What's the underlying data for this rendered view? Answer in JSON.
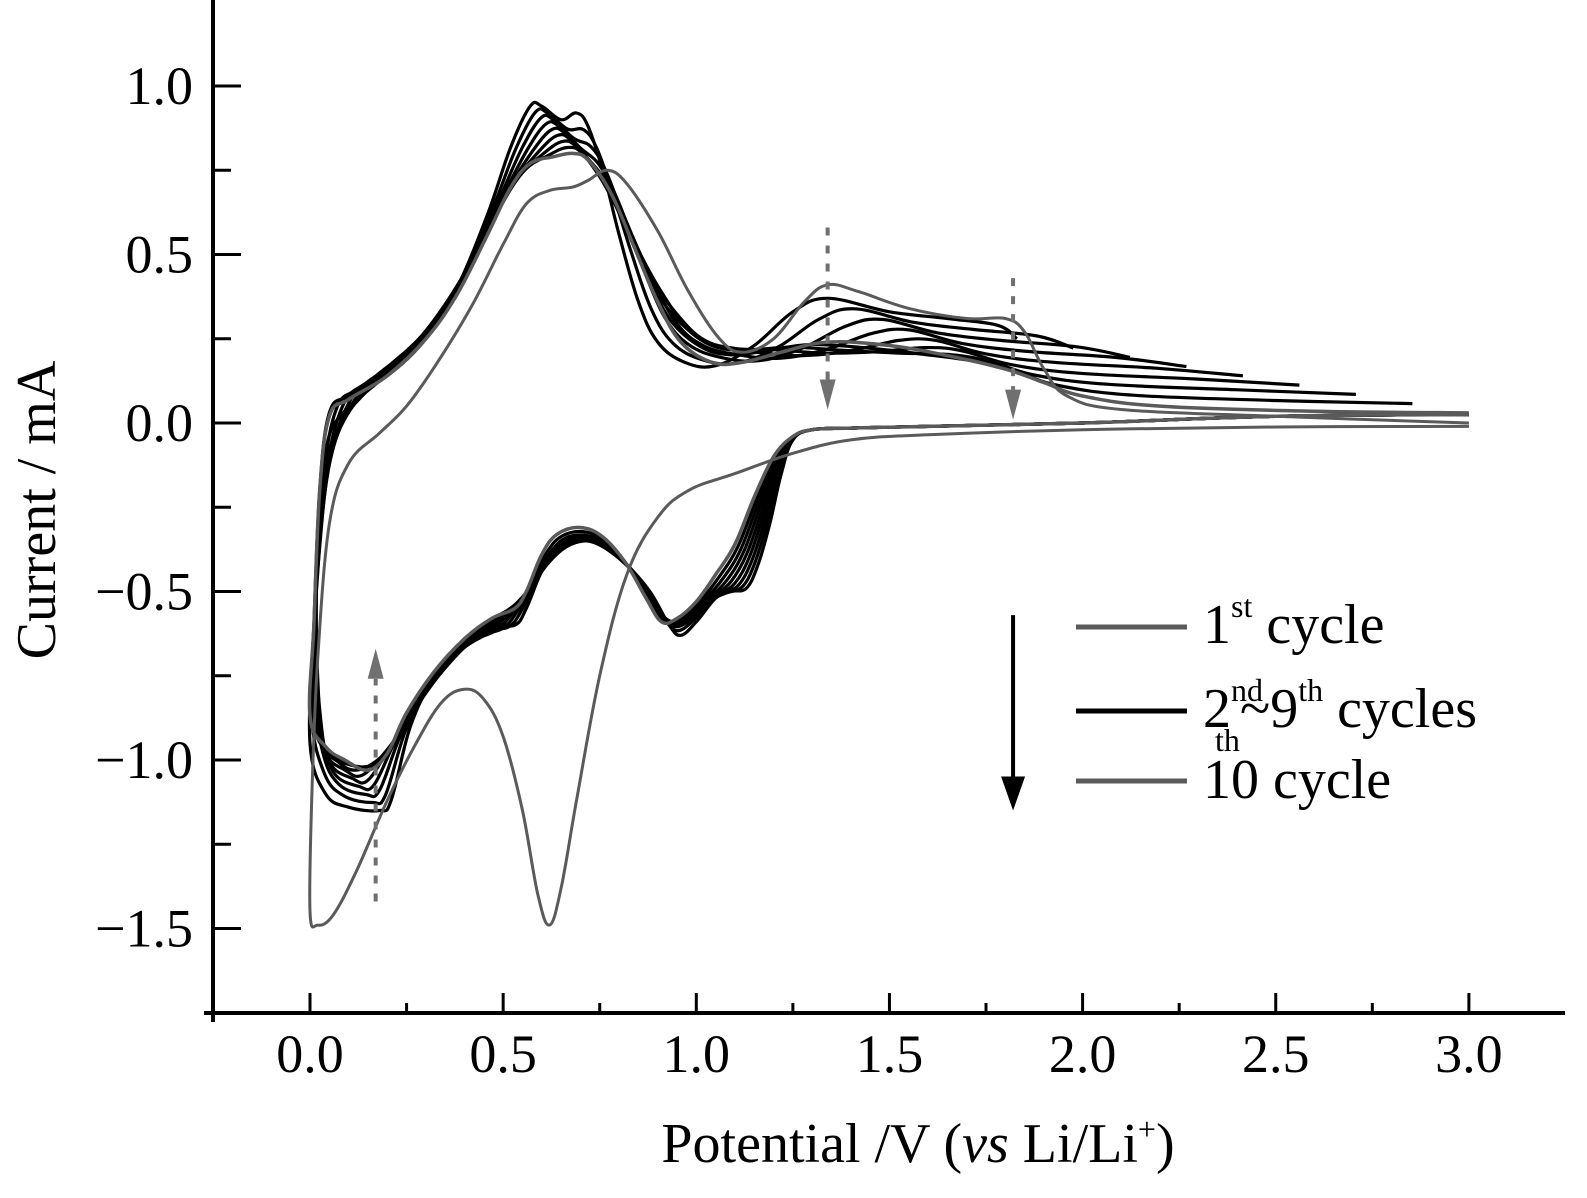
{
  "chart_data": {
    "type": "line",
    "title": "",
    "xlabel": {
      "main": "Potential /V (",
      "italic": "vs",
      "rest": " Li/Li",
      "sup": "+",
      "close": ")"
    },
    "ylabel": "Current / mA",
    "xlim": [
      -0.25,
      3.25
    ],
    "ylim": [
      -1.75,
      1.25
    ],
    "x_ticks": [
      {
        "value": 0.0,
        "label": "0.0"
      },
      {
        "value": 0.5,
        "label": "0.5"
      },
      {
        "value": 1.0,
        "label": "1.0"
      },
      {
        "value": 1.5,
        "label": "1.5"
      },
      {
        "value": 2.0,
        "label": "2.0"
      },
      {
        "value": 2.5,
        "label": "2.5"
      },
      {
        "value": 3.0,
        "label": "3.0"
      }
    ],
    "x_minor_ticks": [
      0.25,
      0.75,
      1.25,
      1.75,
      2.25,
      2.75
    ],
    "y_ticks": [
      {
        "value": 1.0,
        "label": "1.0"
      },
      {
        "value": 0.5,
        "label": "0.5"
      },
      {
        "value": 0.0,
        "label": "0.0"
      },
      {
        "value": -0.5,
        "label": "−0.5"
      },
      {
        "value": -1.0,
        "label": "−1.0"
      },
      {
        "value": -1.5,
        "label": "−1.5"
      }
    ],
    "y_minor_ticks": [
      0.75,
      0.25,
      -0.25,
      -0.75,
      -1.25
    ],
    "grid": false,
    "colors": {
      "first": "#5a5a5a",
      "middle": "#000000",
      "tenth": "#5a5a5a",
      "annotation": "#707070"
    },
    "legend": {
      "placement": "right-center",
      "entries": [
        {
          "label": "1",
          "sup": "st",
          "rest": " cycle",
          "color": "#5a5a5a"
        },
        {
          "label": "2",
          "sup": "nd",
          "sub": "th",
          "mid": "~9",
          "sup2": "th",
          "rest": " cycles",
          "color": "#000000"
        },
        {
          "label": "10",
          "rest": " cycle",
          "color": "#5a5a5a"
        }
      ]
    },
    "annotations": [
      {
        "type": "dotted-arrow",
        "direction": "up",
        "x": 0.17,
        "y_from": -1.42,
        "y_to": -0.67
      },
      {
        "type": "dotted-arrow",
        "direction": "down",
        "x": 1.34,
        "y_from": 0.58,
        "y_to": 0.04
      },
      {
        "type": "dotted-arrow",
        "direction": "down",
        "x": 1.82,
        "y_from": 0.43,
        "y_to": 0.01
      },
      {
        "type": "solid-arrow",
        "direction": "down",
        "x": 1.82,
        "y_from": -0.57,
        "y_to": -1.15,
        "note": "legend order arrow"
      }
    ],
    "series": [
      {
        "name": "1st cycle",
        "color": "#5a5a5a",
        "points": [
          [
            3.0,
            -0.01
          ],
          [
            2.5,
            -0.012
          ],
          [
            2.0,
            -0.02
          ],
          [
            1.6,
            -0.035
          ],
          [
            1.4,
            -0.05
          ],
          [
            1.25,
            -0.09
          ],
          [
            1.1,
            -0.15
          ],
          [
            0.98,
            -0.2
          ],
          [
            0.9,
            -0.28
          ],
          [
            0.82,
            -0.45
          ],
          [
            0.75,
            -0.75
          ],
          [
            0.69,
            -1.12
          ],
          [
            0.65,
            -1.38
          ],
          [
            0.62,
            -1.49
          ],
          [
            0.59,
            -1.4
          ],
          [
            0.55,
            -1.15
          ],
          [
            0.5,
            -0.93
          ],
          [
            0.45,
            -0.82
          ],
          [
            0.4,
            -0.79
          ],
          [
            0.34,
            -0.83
          ],
          [
            0.27,
            -0.96
          ],
          [
            0.2,
            -1.12
          ],
          [
            0.12,
            -1.33
          ],
          [
            0.06,
            -1.46
          ],
          [
            0.02,
            -1.49
          ],
          [
            0.0,
            -1.45
          ],
          [
            0.005,
            -1.1
          ],
          [
            0.02,
            -0.7
          ],
          [
            0.05,
            -0.3
          ],
          [
            0.1,
            -0.12
          ],
          [
            0.18,
            -0.03
          ],
          [
            0.25,
            0.05
          ],
          [
            0.33,
            0.18
          ],
          [
            0.42,
            0.35
          ],
          [
            0.5,
            0.53
          ],
          [
            0.56,
            0.65
          ],
          [
            0.62,
            0.69
          ],
          [
            0.68,
            0.7
          ],
          [
            0.72,
            0.72
          ],
          [
            0.77,
            0.75
          ],
          [
            0.82,
            0.71
          ],
          [
            0.9,
            0.57
          ],
          [
            0.98,
            0.39
          ],
          [
            1.06,
            0.25
          ],
          [
            1.12,
            0.21
          ],
          [
            1.2,
            0.25
          ],
          [
            1.28,
            0.36
          ],
          [
            1.34,
            0.41
          ],
          [
            1.42,
            0.39
          ],
          [
            1.55,
            0.34
          ],
          [
            1.7,
            0.31
          ],
          [
            1.8,
            0.31
          ],
          [
            1.85,
            0.27
          ],
          [
            1.9,
            0.16
          ],
          [
            1.96,
            0.08
          ],
          [
            2.1,
            0.04
          ],
          [
            2.5,
            0.02
          ],
          [
            3.0,
            0.0
          ]
        ]
      },
      {
        "name": "2nd~9th cycles",
        "color": "#000000",
        "count": 8,
        "points_template": "interpolated between cycle 2 and cycle 10 shapes"
      },
      {
        "name": "10th cycle",
        "color": "#5a5a5a",
        "points": [
          [
            3.0,
            0.025
          ],
          [
            2.5,
            0.02
          ],
          [
            2.0,
            0.0
          ],
          [
            1.6,
            -0.01
          ],
          [
            1.4,
            -0.015
          ],
          [
            1.3,
            -0.02
          ],
          [
            1.25,
            -0.04
          ],
          [
            1.2,
            -0.1
          ],
          [
            1.15,
            -0.22
          ],
          [
            1.1,
            -0.36
          ],
          [
            1.05,
            -0.45
          ],
          [
            1.0,
            -0.53
          ],
          [
            0.95,
            -0.58
          ],
          [
            0.91,
            -0.59
          ],
          [
            0.87,
            -0.52
          ],
          [
            0.82,
            -0.42
          ],
          [
            0.76,
            -0.34
          ],
          [
            0.7,
            -0.31
          ],
          [
            0.64,
            -0.33
          ],
          [
            0.6,
            -0.39
          ],
          [
            0.56,
            -0.5
          ],
          [
            0.53,
            -0.55
          ],
          [
            0.47,
            -0.58
          ],
          [
            0.4,
            -0.64
          ],
          [
            0.32,
            -0.74
          ],
          [
            0.25,
            -0.86
          ],
          [
            0.2,
            -0.98
          ],
          [
            0.15,
            -1.03
          ],
          [
            0.09,
            -1.0
          ],
          [
            0.04,
            -0.96
          ],
          [
            0.0,
            -0.87
          ],
          [
            0.01,
            -0.6
          ],
          [
            0.025,
            -0.2
          ],
          [
            0.05,
            0.02
          ],
          [
            0.1,
            0.07
          ],
          [
            0.2,
            0.14
          ],
          [
            0.3,
            0.25
          ],
          [
            0.38,
            0.38
          ],
          [
            0.46,
            0.56
          ],
          [
            0.52,
            0.7
          ],
          [
            0.57,
            0.77
          ],
          [
            0.63,
            0.79
          ],
          [
            0.68,
            0.8
          ],
          [
            0.72,
            0.78
          ],
          [
            0.78,
            0.68
          ],
          [
            0.84,
            0.52
          ],
          [
            0.9,
            0.36
          ],
          [
            0.96,
            0.24
          ],
          [
            1.04,
            0.18
          ],
          [
            1.12,
            0.18
          ],
          [
            1.22,
            0.21
          ],
          [
            1.34,
            0.24
          ],
          [
            1.5,
            0.23
          ],
          [
            1.65,
            0.2
          ],
          [
            1.8,
            0.16
          ],
          [
            1.9,
            0.12
          ],
          [
            2.0,
            0.08
          ],
          [
            2.2,
            0.05
          ],
          [
            2.6,
            0.035
          ],
          [
            3.0,
            0.03
          ]
        ]
      }
    ],
    "cycle2_points": [
      [
        3.0,
        0.025
      ],
      [
        2.5,
        0.02
      ],
      [
        2.0,
        0.0
      ],
      [
        1.6,
        -0.01
      ],
      [
        1.4,
        -0.015
      ],
      [
        1.3,
        -0.02
      ],
      [
        1.25,
        -0.05
      ],
      [
        1.22,
        -0.15
      ],
      [
        1.19,
        -0.3
      ],
      [
        1.16,
        -0.42
      ],
      [
        1.13,
        -0.49
      ],
      [
        1.09,
        -0.5
      ],
      [
        1.05,
        -0.52
      ],
      [
        1.0,
        -0.59
      ],
      [
        0.96,
        -0.63
      ],
      [
        0.93,
        -0.6
      ],
      [
        0.88,
        -0.5
      ],
      [
        0.82,
        -0.42
      ],
      [
        0.76,
        -0.36
      ],
      [
        0.7,
        -0.35
      ],
      [
        0.64,
        -0.38
      ],
      [
        0.6,
        -0.44
      ],
      [
        0.56,
        -0.55
      ],
      [
        0.53,
        -0.6
      ],
      [
        0.47,
        -0.6
      ],
      [
        0.4,
        -0.66
      ],
      [
        0.32,
        -0.76
      ],
      [
        0.26,
        -0.9
      ],
      [
        0.21,
        -1.12
      ],
      [
        0.18,
        -1.15
      ],
      [
        0.1,
        -1.14
      ],
      [
        0.04,
        -1.1
      ],
      [
        0.0,
        -0.95
      ],
      [
        0.01,
        -0.6
      ],
      [
        0.025,
        -0.2
      ],
      [
        0.05,
        0.03
      ],
      [
        0.1,
        0.08
      ],
      [
        0.2,
        0.14
      ],
      [
        0.3,
        0.25
      ],
      [
        0.38,
        0.4
      ],
      [
        0.46,
        0.62
      ],
      [
        0.52,
        0.82
      ],
      [
        0.57,
        0.94
      ],
      [
        0.6,
        0.94
      ],
      [
        0.65,
        0.9
      ],
      [
        0.69,
        0.92
      ],
      [
        0.72,
        0.88
      ],
      [
        0.76,
        0.74
      ],
      [
        0.8,
        0.56
      ],
      [
        0.85,
        0.36
      ],
      [
        0.9,
        0.24
      ],
      [
        0.97,
        0.18
      ],
      [
        1.05,
        0.17
      ],
      [
        1.15,
        0.23
      ],
      [
        1.25,
        0.33
      ],
      [
        1.34,
        0.37
      ],
      [
        1.5,
        0.33
      ],
      [
        1.65,
        0.31
      ],
      [
        1.78,
        0.29
      ],
      [
        1.83,
        0.25
      ],
      [
        1.9,
        0.14
      ],
      [
        1.98,
        0.07
      ],
      [
        2.2,
        0.045
      ],
      [
        2.6,
        0.03
      ],
      [
        3.0,
        0.025
      ]
    ]
  }
}
